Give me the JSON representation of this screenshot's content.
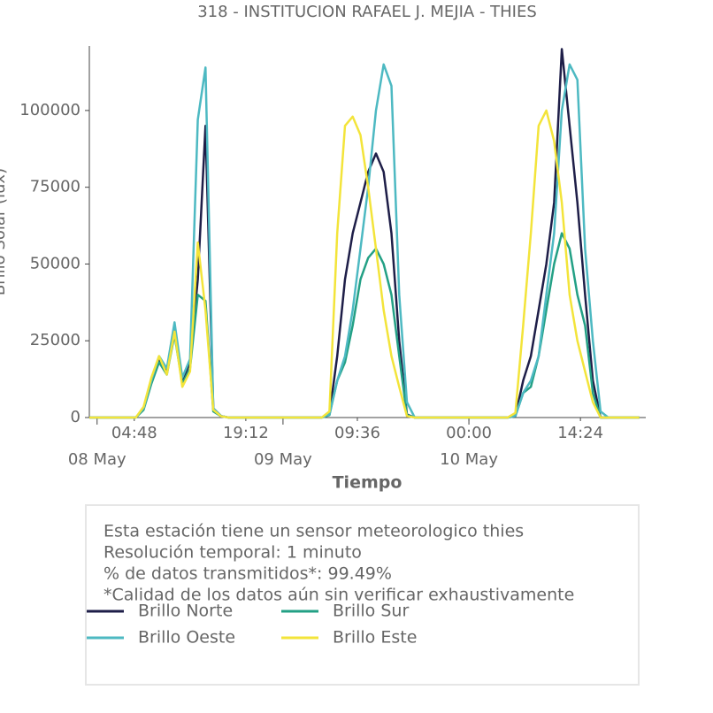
{
  "chart_data": {
    "type": "line",
    "title": "318 - INSTITUCION RAFAEL J. MEJIA - THIES",
    "x_label": "Tiempo",
    "y_label": "Brillo Solar (lux)",
    "x": [
      "07 May 23:00",
      "08 May 00:00",
      "08 May 01:00",
      "08 May 02:00",
      "08 May 03:00",
      "08 May 04:00",
      "08 May 05:00",
      "08 May 06:00",
      "08 May 07:00",
      "08 May 08:00",
      "08 May 09:00",
      "08 May 10:00",
      "08 May 11:00",
      "08 May 12:00",
      "08 May 13:00",
      "08 May 14:00",
      "08 May 15:00",
      "08 May 16:00",
      "08 May 17:00",
      "08 May 18:00",
      "08 May 19:00",
      "08 May 20:00",
      "08 May 21:00",
      "08 May 22:00",
      "08 May 23:00",
      "09 May 00:00",
      "09 May 01:00",
      "09 May 02:00",
      "09 May 03:00",
      "09 May 04:00",
      "09 May 05:00",
      "09 May 06:00",
      "09 May 07:00",
      "09 May 08:00",
      "09 May 09:00",
      "09 May 10:00",
      "09 May 11:00",
      "09 May 12:00",
      "09 May 13:00",
      "09 May 14:00",
      "09 May 15:00",
      "09 May 16:00",
      "09 May 17:00",
      "09 May 18:00",
      "09 May 19:00",
      "09 May 20:00",
      "09 May 21:00",
      "09 May 22:00",
      "09 May 23:00",
      "10 May 00:00",
      "10 May 01:00",
      "10 May 02:00",
      "10 May 03:00",
      "10 May 04:00",
      "10 May 05:00",
      "10 May 06:00",
      "10 May 07:00",
      "10 May 08:00",
      "10 May 09:00",
      "10 May 10:00",
      "10 May 11:00",
      "10 May 12:00",
      "10 May 13:00",
      "10 May 14:00",
      "10 May 15:00",
      "10 May 16:00",
      "10 May 17:00",
      "10 May 18:00",
      "10 May 19:00",
      "10 May 20:00",
      "10 May 21:00",
      "10 May 22:00"
    ],
    "series": [
      {
        "name": "Brillo Norte",
        "color": "#1e1e48",
        "values": [
          0,
          0,
          0,
          0,
          0,
          0,
          0,
          3000,
          12000,
          19000,
          15000,
          30000,
          12000,
          18000,
          45000,
          95000,
          3000,
          500,
          0,
          0,
          0,
          0,
          0,
          0,
          0,
          0,
          0,
          0,
          0,
          0,
          0,
          1000,
          20000,
          45000,
          60000,
          70000,
          80000,
          86000,
          80000,
          60000,
          25000,
          1000,
          0,
          0,
          0,
          0,
          0,
          0,
          0,
          0,
          0,
          0,
          0,
          0,
          0,
          500,
          12000,
          20000,
          35000,
          50000,
          70000,
          120000,
          95000,
          70000,
          40000,
          12000,
          0,
          0,
          0,
          0,
          0,
          0
        ]
      },
      {
        "name": "Brillo Sur",
        "color": "#23a085",
        "values": [
          0,
          0,
          0,
          0,
          0,
          0,
          0,
          2500,
          11000,
          18000,
          14000,
          27000,
          11000,
          16000,
          40000,
          38000,
          2000,
          400,
          0,
          0,
          0,
          0,
          0,
          0,
          0,
          0,
          0,
          0,
          0,
          0,
          0,
          800,
          12000,
          18000,
          30000,
          45000,
          52000,
          55000,
          50000,
          40000,
          20000,
          800,
          0,
          0,
          0,
          0,
          0,
          0,
          0,
          0,
          0,
          0,
          0,
          0,
          0,
          500,
          8000,
          10000,
          20000,
          35000,
          50000,
          60000,
          55000,
          40000,
          30000,
          8000,
          0,
          0,
          0,
          0,
          0,
          0
        ]
      },
      {
        "name": "Brillo Oeste",
        "color": "#4db9c2",
        "values": [
          0,
          0,
          0,
          0,
          0,
          0,
          0,
          3000,
          12000,
          20000,
          16000,
          31000,
          13000,
          19000,
          97000,
          114000,
          3000,
          500,
          0,
          0,
          0,
          0,
          0,
          0,
          0,
          0,
          0,
          0,
          0,
          0,
          0,
          1000,
          12000,
          20000,
          35000,
          55000,
          75000,
          100000,
          115000,
          108000,
          40000,
          5000,
          0,
          0,
          0,
          0,
          0,
          0,
          0,
          0,
          0,
          0,
          0,
          0,
          0,
          500,
          8000,
          12000,
          20000,
          40000,
          60000,
          100000,
          115000,
          110000,
          55000,
          25000,
          2000,
          0,
          0,
          0,
          0,
          0
        ]
      },
      {
        "name": "Brillo Este",
        "color": "#f3e43a",
        "values": [
          0,
          0,
          0,
          0,
          0,
          0,
          0,
          3500,
          13000,
          20000,
          14000,
          28000,
          10000,
          15000,
          57000,
          35000,
          2500,
          400,
          0,
          0,
          0,
          0,
          0,
          0,
          0,
          0,
          0,
          0,
          0,
          0,
          0,
          2000,
          60000,
          95000,
          98000,
          92000,
          75000,
          55000,
          35000,
          20000,
          10000,
          500,
          0,
          0,
          0,
          0,
          0,
          0,
          0,
          0,
          0,
          0,
          0,
          0,
          0,
          1500,
          30000,
          60000,
          95000,
          100000,
          90000,
          70000,
          40000,
          25000,
          15000,
          5000,
          0,
          0,
          0,
          0,
          0,
          0
        ]
      }
    ],
    "xlim": [
      "07 May 23:00",
      "10 May 22:50"
    ],
    "xticks": [
      {
        "value": "08 May 04:48",
        "label": "04:48"
      },
      {
        "value": "08 May 19:12",
        "label": "19:12"
      },
      {
        "value": "09 May 09:36",
        "label": "09:36"
      },
      {
        "value": "10 May 00:00",
        "label": "00:00"
      },
      {
        "value": "10 May 14:24",
        "label": "14:24"
      }
    ],
    "xticks_major": [
      {
        "value": "08 May 00:00",
        "label": "08 May"
      },
      {
        "value": "09 May 00:00",
        "label": "09 May"
      },
      {
        "value": "10 May 00:00",
        "label": "10 May"
      }
    ],
    "ylim": [
      0,
      121000
    ],
    "yticks": [
      0,
      25000,
      50000,
      75000,
      100000
    ],
    "grid": false
  },
  "info": {
    "lines": [
      "Esta estación tiene un sensor meteorologico thies",
      "Resolución temporal: 1 minuto",
      "% de datos transmitidos*: 99.49%",
      "*Calidad de los datos aún sin verificar exhaustivamente"
    ]
  }
}
